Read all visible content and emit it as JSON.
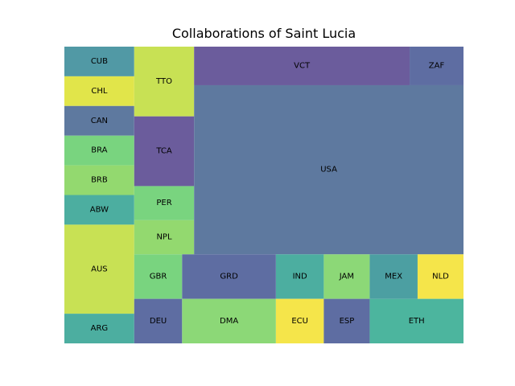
{
  "chart_data": {
    "type": "treemap",
    "title": "Collaborations of Saint Lucia",
    "xlabel": "",
    "ylabel": "",
    "axes_visible": false,
    "grid": false,
    "cells": [
      {
        "label": "CUB",
        "color": "#5199a5",
        "x0": 0,
        "x1": 17.5,
        "y0": 90,
        "y1": 100
      },
      {
        "label": "CHL",
        "color": "#e1e54a",
        "x0": 0,
        "x1": 17.5,
        "y0": 80,
        "y1": 90
      },
      {
        "label": "CAN",
        "color": "#5e799f",
        "x0": 0,
        "x1": 17.5,
        "y0": 70,
        "y1": 80
      },
      {
        "label": "BRA",
        "color": "#79d47f",
        "x0": 0,
        "x1": 17.5,
        "y0": 60,
        "y1": 70
      },
      {
        "label": "BRB",
        "color": "#93d96f",
        "x0": 0,
        "x1": 17.5,
        "y0": 50,
        "y1": 60
      },
      {
        "label": "ABW",
        "color": "#4caea0",
        "x0": 0,
        "x1": 17.5,
        "y0": 40,
        "y1": 50
      },
      {
        "label": "AUS",
        "color": "#c8e154",
        "x0": 0,
        "x1": 17.5,
        "y0": 10,
        "y1": 40
      },
      {
        "label": "ARG",
        "color": "#4caea0",
        "x0": 0,
        "x1": 17.5,
        "y0": 0,
        "y1": 10
      },
      {
        "label": "TTO",
        "color": "#c8e154",
        "x0": 17.5,
        "x1": 32.5,
        "y0": 76.5,
        "y1": 100
      },
      {
        "label": "TCA",
        "color": "#6b5c9c",
        "x0": 17.5,
        "x1": 32.5,
        "y0": 53,
        "y1": 76.5
      },
      {
        "label": "PER",
        "color": "#79d47f",
        "x0": 17.5,
        "x1": 32.5,
        "y0": 41.5,
        "y1": 53
      },
      {
        "label": "NPL",
        "color": "#93d96f",
        "x0": 17.5,
        "x1": 32.5,
        "y0": 30,
        "y1": 41.5
      },
      {
        "label": "VCT",
        "color": "#6b5c9c",
        "x0": 32.5,
        "x1": 86.5,
        "y0": 87,
        "y1": 100
      },
      {
        "label": "ZAF",
        "color": "#5e6da2",
        "x0": 86.5,
        "x1": 100,
        "y0": 87,
        "y1": 100
      },
      {
        "label": "USA",
        "color": "#5e799f",
        "x0": 32.5,
        "x1": 100,
        "y0": 30,
        "y1": 87
      },
      {
        "label": "GBR",
        "color": "#79d47f",
        "x0": 17.5,
        "x1": 29.5,
        "y0": 15,
        "y1": 30
      },
      {
        "label": "DEU",
        "color": "#5e6da2",
        "x0": 17.5,
        "x1": 29.5,
        "y0": 0,
        "y1": 15
      },
      {
        "label": "GRD",
        "color": "#5e6da2",
        "x0": 29.5,
        "x1": 53,
        "y0": 15,
        "y1": 30
      },
      {
        "label": "DMA",
        "color": "#8cd877",
        "x0": 29.5,
        "x1": 53,
        "y0": 0,
        "y1": 15
      },
      {
        "label": "IND",
        "color": "#4caea0",
        "x0": 53,
        "x1": 65,
        "y0": 15,
        "y1": 30
      },
      {
        "label": "ECU",
        "color": "#f5e54a",
        "x0": 53,
        "x1": 65,
        "y0": 0,
        "y1": 15
      },
      {
        "label": "JAM",
        "color": "#8cd877",
        "x0": 65,
        "x1": 76.5,
        "y0": 15,
        "y1": 30
      },
      {
        "label": "ESP",
        "color": "#5e6da2",
        "x0": 65,
        "x1": 76.5,
        "y0": 0,
        "y1": 15
      },
      {
        "label": "MEX",
        "color": "#4c9fa2",
        "x0": 76.5,
        "x1": 88.5,
        "y0": 15,
        "y1": 30
      },
      {
        "label": "NLD",
        "color": "#f5e54a",
        "x0": 88.5,
        "x1": 100,
        "y0": 15,
        "y1": 30
      },
      {
        "label": "ETH",
        "color": "#4cb59e",
        "x0": 76.5,
        "x1": 100,
        "y0": 0,
        "y1": 15
      }
    ]
  }
}
